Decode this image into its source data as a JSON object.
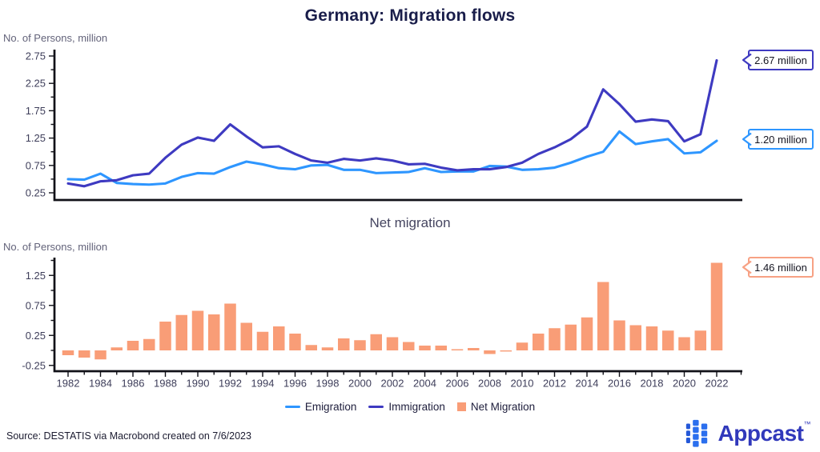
{
  "title": "Germany: Migration flows",
  "top_chart": {
    "ylabel": "No. of Persons, million",
    "callouts": [
      {
        "label": "2.67 million",
        "series": "immigration"
      },
      {
        "label": "1.20 million",
        "series": "emigration"
      }
    ]
  },
  "bottom_chart": {
    "title": "Net migration",
    "ylabel": "No. of Persons, million",
    "callout": {
      "label": "1.46 million",
      "series": "net"
    }
  },
  "legend": [
    {
      "label": "Emigration",
      "type": "line",
      "color_key": "emigration"
    },
    {
      "label": "Immigration",
      "type": "line",
      "color_key": "immigration"
    },
    {
      "label": "Net Migration",
      "type": "square",
      "color_key": "net"
    }
  ],
  "footer": {
    "source": "Source: DESTATIS via Macrobond created on 7/6/2023",
    "brand": "Appcast",
    "tm": "™"
  },
  "colors": {
    "emigration": "#2E96FF",
    "immigration": "#3E3AC1",
    "net": "#F99D77",
    "net_border": "#F7A184",
    "axis": "#111118",
    "tick_text": "#3e3e5a",
    "logo_text": "#3139BB",
    "logo_icon_dark": "#2458D8",
    "logo_icon": "#2B6FEE"
  },
  "chart_data": [
    {
      "type": "line",
      "title": "Germany: Migration flows",
      "ylabel": "No. of Persons, million",
      "x": [
        1982,
        1983,
        1984,
        1985,
        1986,
        1987,
        1988,
        1989,
        1990,
        1991,
        1992,
        1993,
        1994,
        1995,
        1996,
        1997,
        1998,
        1999,
        2000,
        2001,
        2002,
        2003,
        2004,
        2005,
        2006,
        2007,
        2008,
        2009,
        2010,
        2011,
        2012,
        2013,
        2014,
        2015,
        2016,
        2017,
        2018,
        2019,
        2020,
        2021,
        2022
      ],
      "series": [
        {
          "name": "Emigration",
          "values": [
            0.5,
            0.49,
            0.6,
            0.43,
            0.41,
            0.4,
            0.42,
            0.54,
            0.61,
            0.6,
            0.72,
            0.82,
            0.77,
            0.7,
            0.68,
            0.75,
            0.76,
            0.67,
            0.67,
            0.61,
            0.62,
            0.63,
            0.7,
            0.63,
            0.64,
            0.64,
            0.74,
            0.73,
            0.67,
            0.68,
            0.71,
            0.8,
            0.91,
            1.0,
            1.37,
            1.14,
            1.19,
            1.23,
            0.97,
            0.99,
            1.2
          ]
        },
        {
          "name": "Immigration",
          "values": [
            0.42,
            0.37,
            0.46,
            0.48,
            0.57,
            0.6,
            0.89,
            1.13,
            1.26,
            1.2,
            1.5,
            1.28,
            1.08,
            1.1,
            0.96,
            0.84,
            0.8,
            0.87,
            0.84,
            0.88,
            0.84,
            0.77,
            0.78,
            0.71,
            0.66,
            0.68,
            0.68,
            0.72,
            0.8,
            0.96,
            1.08,
            1.23,
            1.46,
            2.14,
            1.87,
            1.55,
            1.59,
            1.56,
            1.19,
            1.32,
            2.67
          ]
        }
      ],
      "yticks": [
        0.25,
        0.75,
        1.25,
        1.75,
        2.25,
        2.75
      ],
      "ylim": [
        0.1,
        2.85
      ],
      "grid": false,
      "end_labels": {
        "Immigration": "2.67 million",
        "Emigration": "1.20 million"
      }
    },
    {
      "type": "bar",
      "title": "Net migration",
      "ylabel": "No. of Persons, million",
      "x": [
        1982,
        1983,
        1984,
        1985,
        1986,
        1987,
        1988,
        1989,
        1990,
        1991,
        1992,
        1993,
        1994,
        1995,
        1996,
        1997,
        1998,
        1999,
        2000,
        2001,
        2002,
        2003,
        2004,
        2005,
        2006,
        2007,
        2008,
        2009,
        2010,
        2011,
        2012,
        2013,
        2014,
        2015,
        2016,
        2017,
        2018,
        2019,
        2020,
        2021,
        2022
      ],
      "name": "Net Migration",
      "values": [
        -0.08,
        -0.12,
        -0.15,
        0.05,
        0.16,
        0.19,
        0.48,
        0.59,
        0.66,
        0.6,
        0.78,
        0.46,
        0.31,
        0.4,
        0.28,
        0.09,
        0.05,
        0.2,
        0.17,
        0.27,
        0.22,
        0.14,
        0.08,
        0.08,
        0.02,
        0.04,
        -0.06,
        -0.01,
        0.13,
        0.28,
        0.37,
        0.43,
        0.55,
        1.14,
        0.5,
        0.42,
        0.4,
        0.33,
        0.22,
        0.33,
        1.46
      ],
      "yticks": [
        -0.25,
        0.25,
        0.75,
        1.25
      ],
      "xticks": [
        1982,
        1984,
        1986,
        1988,
        1990,
        1992,
        1994,
        1996,
        1998,
        2000,
        2002,
        2004,
        2006,
        2008,
        2010,
        2012,
        2014,
        2016,
        2018,
        2020,
        2022
      ],
      "ylim": [
        -0.39,
        1.55
      ],
      "grid": false,
      "end_labels": {
        "Net Migration": "1.46 million"
      }
    }
  ]
}
